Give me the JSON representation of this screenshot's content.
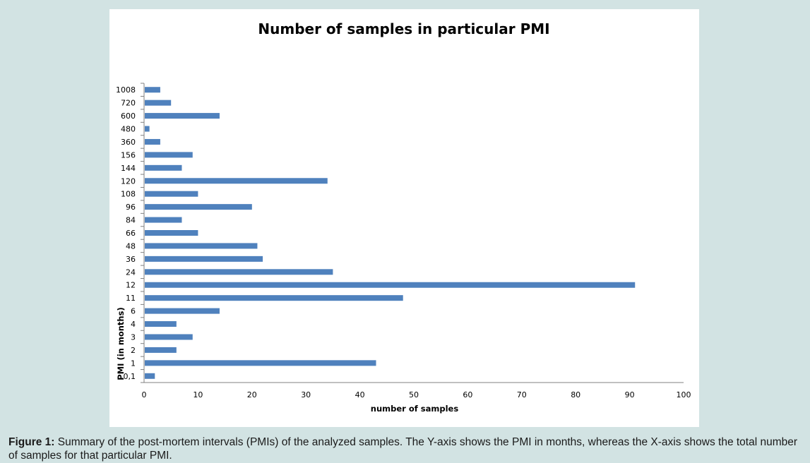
{
  "chart_data": {
    "type": "bar",
    "orientation": "horizontal",
    "title": "Number of samples in particular PMI",
    "xlabel": "number of samples",
    "ylabel": "PMI (in months)",
    "categories": [
      "0,1",
      "1",
      "2",
      "3",
      "4",
      "6",
      "11",
      "12",
      "24",
      "36",
      "48",
      "66",
      "84",
      "96",
      "108",
      "120",
      "144",
      "156",
      "360",
      "480",
      "600",
      "720",
      "1008"
    ],
    "values": [
      2,
      43,
      6,
      9,
      6,
      14,
      48,
      91,
      35,
      22,
      21,
      10,
      7,
      20,
      10,
      34,
      7,
      9,
      3,
      1,
      14,
      5,
      3
    ],
    "xlim": [
      0,
      100
    ],
    "xticks": [
      0,
      10,
      20,
      30,
      40,
      50,
      60,
      70,
      80,
      90,
      100
    ],
    "grid": false,
    "legend": "none",
    "bar_color": "#4f81bd"
  },
  "caption": {
    "label": "Figure 1:",
    "text": " Summary of the post-mortem intervals (PMIs) of the analyzed samples. The Y-axis shows the PMI in months, whereas the X-axis shows the total number of samples for that particular PMI."
  }
}
